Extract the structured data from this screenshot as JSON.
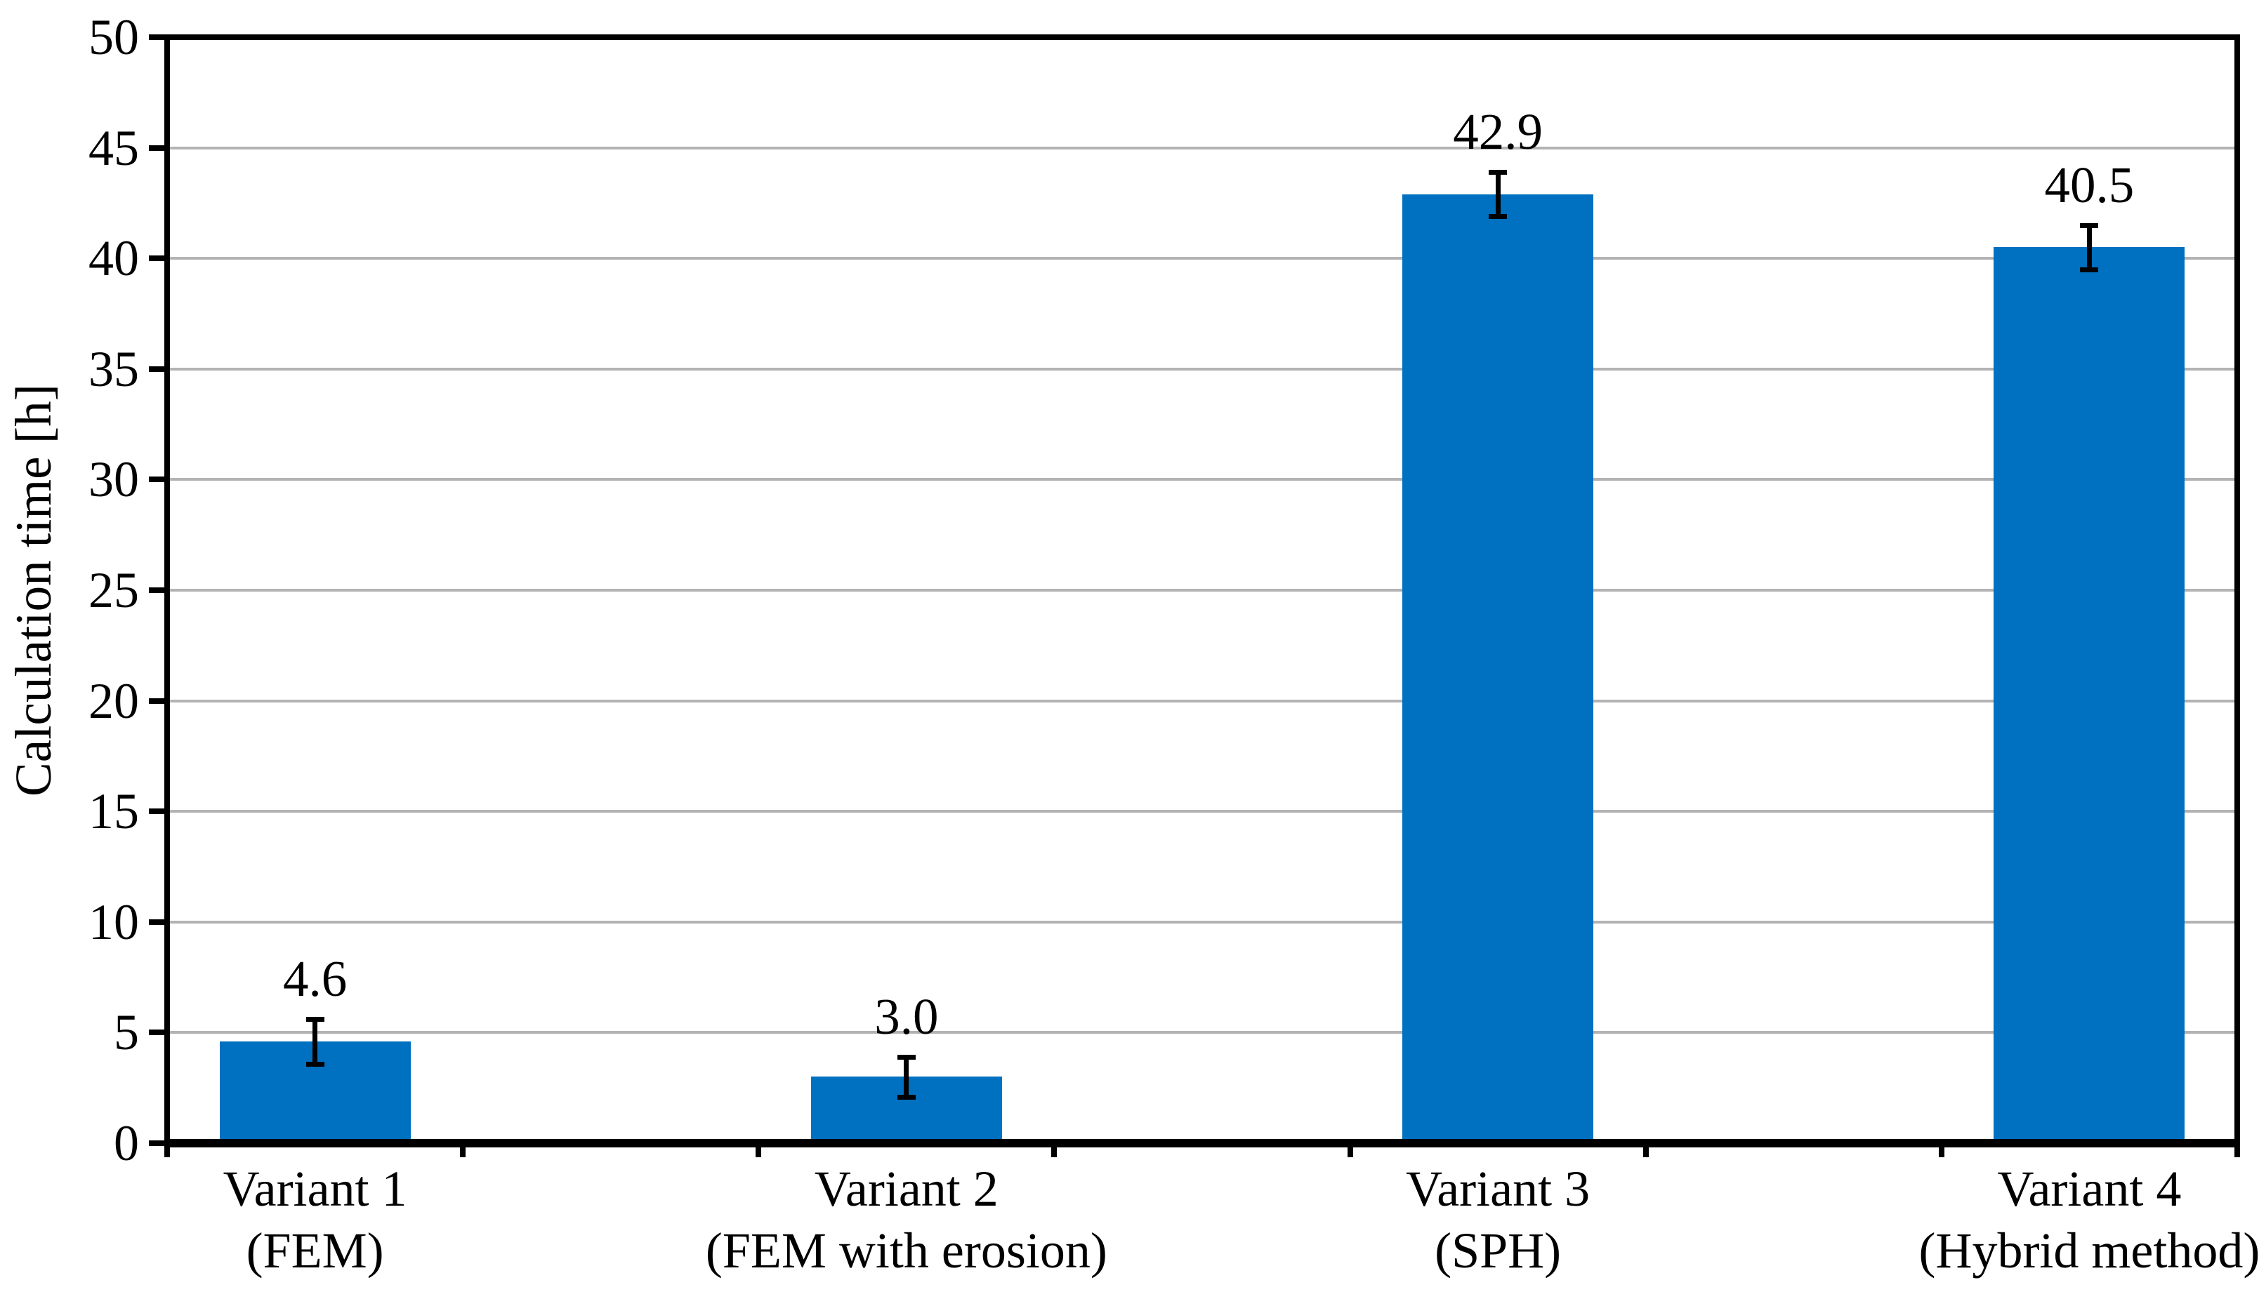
{
  "figure": {
    "background": "#ffffff"
  },
  "chart_data": {
    "type": "bar",
    "title": "",
    "xlabel": "",
    "ylabel": "Calculation time [h]",
    "ylim": [
      0,
      50
    ],
    "ytick_interval": 5,
    "ytick_labels": [
      "0",
      "5",
      "10",
      "15",
      "20",
      "25",
      "30",
      "35",
      "40",
      "45",
      "50"
    ],
    "grid": "horizontal-gridlines-on",
    "legend": "none",
    "categories": [
      {
        "line1": "Variant 1",
        "line2": "(FEM)"
      },
      {
        "line1": "Variant 2",
        "line2": "(FEM with erosion)"
      },
      {
        "line1": "Variant 3",
        "line2": "(SPH)"
      },
      {
        "line1": "Variant 4",
        "line2": "(Hybrid method)"
      }
    ],
    "values": [
      4.6,
      3.0,
      42.9,
      40.5
    ],
    "data_labels": [
      "4.6",
      "3.0",
      "42.9",
      "40.5"
    ],
    "error_bars_plus_minus": [
      1.0,
      0.9,
      1.0,
      1.0
    ],
    "colors": {
      "bar": "#0070C0",
      "gridline": "#B3B3B3",
      "axis": "#000000",
      "text": "#000000"
    },
    "layout": {
      "slots": 7,
      "bar_slot_indices": [
        0,
        2,
        4,
        6
      ],
      "legend_position": "none"
    }
  }
}
